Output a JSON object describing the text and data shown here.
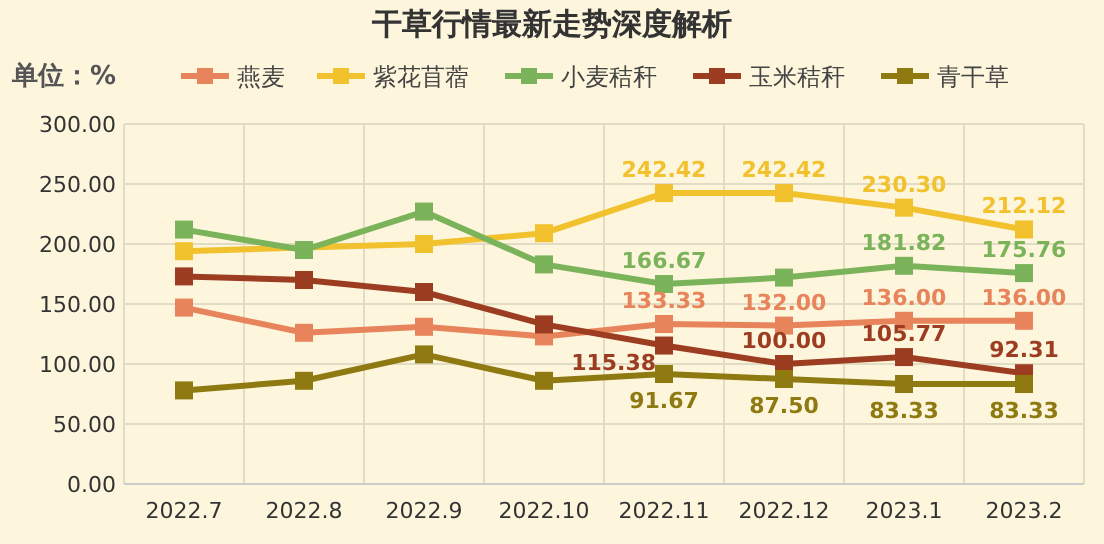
{
  "chart_data": {
    "type": "line",
    "title": "干草行情最新走势深度解析",
    "ylabel": "单位：%",
    "categories": [
      "2022.7",
      "2022.8",
      "2022.9",
      "2022.10",
      "2022.11",
      "2022.12",
      "2023.1",
      "2023.2"
    ],
    "ylim": [
      0,
      300
    ],
    "yticks": [
      {
        "value": 0,
        "label": "0.00"
      },
      {
        "value": 50,
        "label": "50.00"
      },
      {
        "value": 100,
        "label": "100.00"
      },
      {
        "value": 150,
        "label": "150.00"
      },
      {
        "value": 200,
        "label": "200.00"
      },
      {
        "value": 250,
        "label": "250.00"
      },
      {
        "value": 300,
        "label": "300.00"
      }
    ],
    "grid": true,
    "legend": "top",
    "marker": "square",
    "line_style": "solid",
    "series": [
      {
        "name": "燕麦",
        "color": "#e8845c",
        "values": [
          147,
          126,
          131,
          123,
          133.33,
          132.0,
          136.0,
          136.0
        ],
        "value_labels": [
          null,
          null,
          null,
          null,
          "133.33",
          "132.00",
          "136.00",
          "136.00"
        ]
      },
      {
        "name": "紫花苜蓿",
        "color": "#f2c12e",
        "values": [
          194,
          null,
          200,
          209,
          242.42,
          242.42,
          230.3,
          212.12
        ],
        "value_labels": [
          null,
          null,
          null,
          null,
          "242.42",
          "242.42",
          "230.30",
          "212.12"
        ]
      },
      {
        "name": "小麦秸秆",
        "color": "#7bb35a",
        "values": [
          212,
          195,
          227,
          183,
          166.67,
          172,
          181.82,
          175.76
        ],
        "value_labels": [
          null,
          null,
          null,
          null,
          "166.67",
          null,
          "181.82",
          "175.76"
        ]
      },
      {
        "name": "玉米秸秆",
        "color": "#9c3d22",
        "values": [
          173,
          170,
          160,
          133,
          115.38,
          100.0,
          105.77,
          92.31
        ],
        "value_labels": [
          null,
          null,
          null,
          null,
          "115.38",
          "100.00",
          "105.77",
          "92.31"
        ]
      },
      {
        "name": "青干草",
        "color": "#8f7a12",
        "values": [
          78,
          86,
          108,
          86,
          91.67,
          87.5,
          83.33,
          83.33
        ],
        "value_labels": [
          null,
          null,
          null,
          null,
          "91.67",
          "87.50",
          "83.33",
          "83.33"
        ]
      }
    ]
  }
}
